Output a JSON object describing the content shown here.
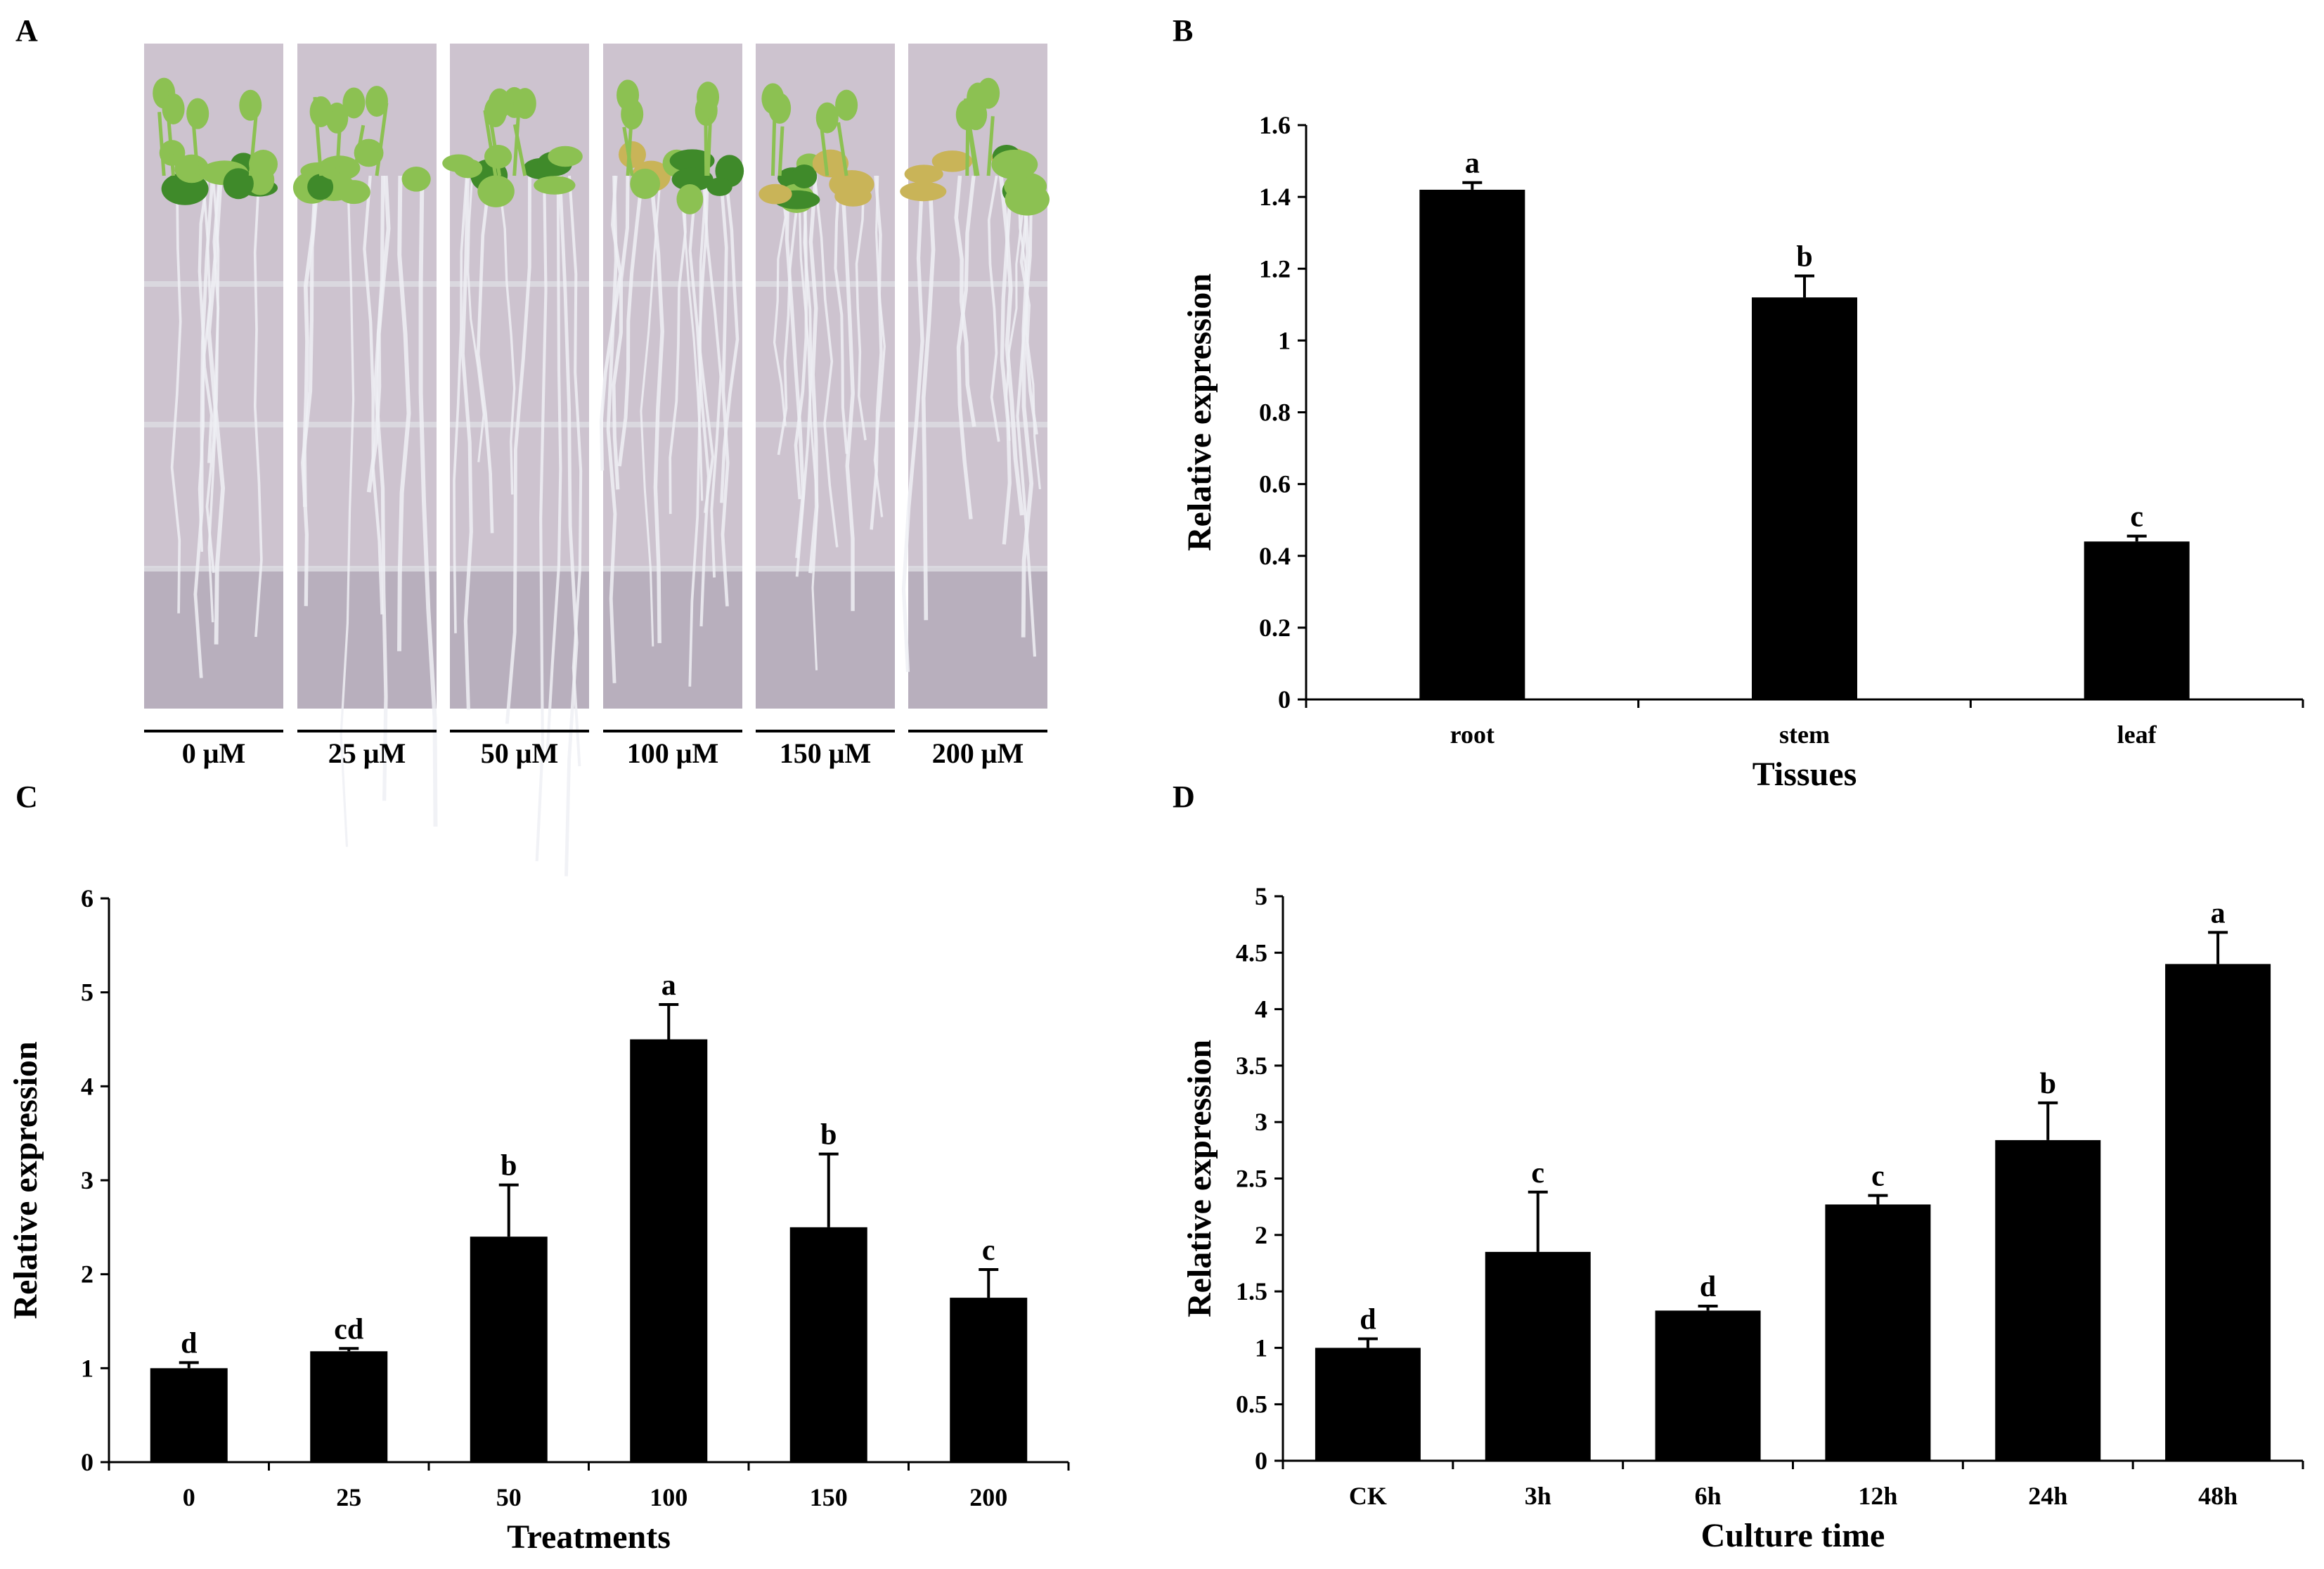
{
  "panel_labels": {
    "a": "A",
    "b": "B",
    "c": "C",
    "d": "D"
  },
  "photo": {
    "concentrations": [
      "0 μM",
      "25 μM",
      "50 μM",
      "100 μM",
      "150 μM",
      "200 μM"
    ],
    "colors": {
      "plate": "#cdc3cf",
      "plate_dark": "#a79fae",
      "leaf": "#8cc152",
      "leaf_dark": "#3f8a2a",
      "leaf_yellow": "#c9b458",
      "root": "#eef0f4",
      "grid": "#dcdce2"
    },
    "root_density": [
      0.3,
      0.3,
      0.45,
      0.85,
      0.8,
      0.7
    ]
  },
  "chart_data": [
    {
      "id": "B",
      "type": "bar",
      "categories": [
        "root",
        "stem",
        "leaf"
      ],
      "values": [
        1.42,
        1.12,
        0.44
      ],
      "errors": [
        0.02,
        0.06,
        0.015
      ],
      "significance": [
        "a",
        "b",
        "c"
      ],
      "xlabel": "Tissues",
      "ylabel": "Relative expression",
      "ylim": [
        0,
        1.6
      ],
      "yticks": [
        0,
        0.2,
        0.4,
        0.6,
        0.8,
        1,
        1.2,
        1.4,
        1.6
      ],
      "ytick_labels": [
        "0",
        "0.2",
        "0.4",
        "0.6",
        "0.8",
        "1",
        "1.2",
        "1.4",
        "1.6"
      ],
      "bar_color": "#000000"
    },
    {
      "id": "C",
      "type": "bar",
      "categories": [
        "0",
        "25",
        "50",
        "100",
        "150",
        "200"
      ],
      "values": [
        1.0,
        1.18,
        2.4,
        4.5,
        2.5,
        1.75
      ],
      "errors": [
        0.06,
        0.03,
        0.55,
        0.37,
        0.78,
        0.3
      ],
      "significance": [
        "d",
        "cd",
        "b",
        "a",
        "b",
        "c"
      ],
      "xlabel": "Treatments",
      "ylabel": "Relative expression",
      "ylim": [
        0,
        6
      ],
      "yticks": [
        0,
        1,
        2,
        3,
        4,
        5,
        6
      ],
      "ytick_labels": [
        "0",
        "1",
        "2",
        "3",
        "4",
        "5",
        "6"
      ],
      "bar_color": "#000000"
    },
    {
      "id": "D",
      "type": "bar",
      "categories": [
        "CK",
        "3h",
        "6h",
        "12h",
        "24h",
        "48h"
      ],
      "values": [
        1.0,
        1.85,
        1.33,
        2.27,
        2.84,
        4.4
      ],
      "errors": [
        0.08,
        0.53,
        0.04,
        0.08,
        0.33,
        0.28
      ],
      "significance": [
        "d",
        "c",
        "d",
        "c",
        "b",
        "a"
      ],
      "xlabel": "Culture time",
      "ylabel": "Relative expression",
      "ylim": [
        0,
        5
      ],
      "yticks": [
        0,
        0.5,
        1,
        1.5,
        2,
        2.5,
        3,
        3.5,
        4,
        4.5,
        5
      ],
      "ytick_labels": [
        "0",
        "0.5",
        "1",
        "1.5",
        "2",
        "2.5",
        "3",
        "3.5",
        "4",
        "4.5",
        "5"
      ],
      "bar_color": "#000000"
    }
  ]
}
